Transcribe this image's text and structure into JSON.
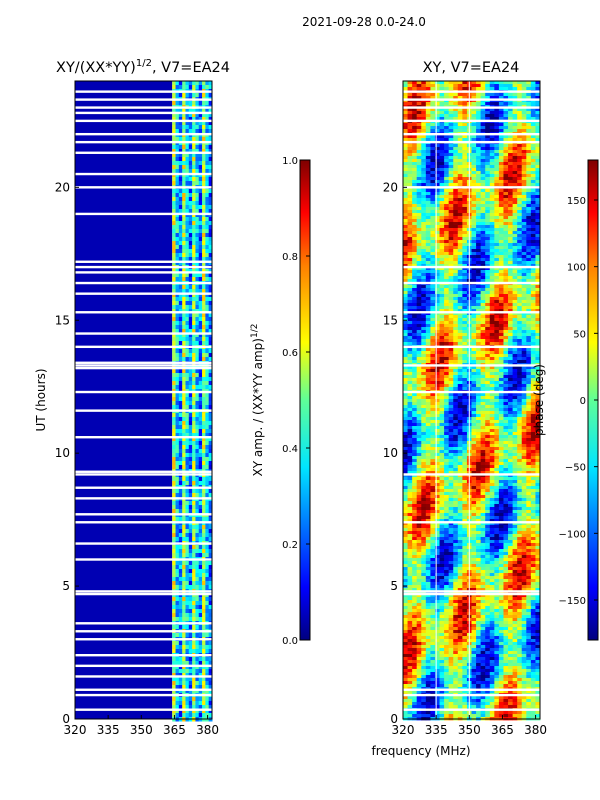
{
  "header": "2021-09-28 0.0-24.0",
  "common_xlabel": "frequency (MHz)",
  "chart_data": [
    {
      "type": "heatmap",
      "title": "XY/(XX*YY)^1/2, V7=EA24",
      "title_main": "XY/(XX*YY)",
      "title_sup": "1/2",
      "title_tail": ", V7=EA24",
      "ylabel": "UT (hours)",
      "xlim": [
        320,
        382
      ],
      "ylim": [
        0,
        24
      ],
      "xticks": [
        320,
        335,
        350,
        365,
        380
      ],
      "yticks": [
        0,
        5,
        10,
        15,
        20
      ],
      "colorbar": {
        "label_main": "XY amp. / (XX*YY amp)",
        "label_sup": "1/2",
        "range": [
          0.0,
          1.0
        ],
        "ticks": [
          0.0,
          0.2,
          0.4,
          0.6,
          0.8,
          1.0
        ],
        "tick_labels": [
          "0.0",
          "0.2",
          "0.4",
          "0.6",
          "0.8",
          "1.0"
        ]
      },
      "description_values": {
        "low_band_level": 0.05,
        "high_band_start_mhz": 364,
        "high_band_level": 0.45
      },
      "flag_hours": [
        0.35,
        0.9,
        1.1,
        1.6,
        2.0,
        2.4,
        3.0,
        3.3,
        3.6,
        4.7,
        4.8,
        6.0,
        6.6,
        7.4,
        7.7,
        8.3,
        8.7,
        9.2,
        9.3,
        10.6,
        11.6,
        12.3,
        13.2,
        13.3,
        13.4,
        14.0,
        14.5,
        15.3,
        16.0,
        16.4,
        16.8,
        17.0,
        17.2,
        19.0,
        20.0,
        20.5,
        21.3,
        21.7,
        22.0,
        22.5,
        22.8,
        23.0,
        23.3,
        23.6
      ]
    },
    {
      "type": "heatmap",
      "title": "XY, V7=EA24",
      "xlim": [
        320,
        382
      ],
      "ylim": [
        0,
        24
      ],
      "xticks": [
        320,
        335,
        350,
        365,
        380
      ],
      "yticks": [
        0,
        5,
        10,
        15,
        20
      ],
      "colorbar": {
        "label": "phase (deg)",
        "range": [
          -180,
          180
        ],
        "ticks": [
          -150,
          -100,
          -50,
          0,
          50,
          100,
          150
        ],
        "tick_labels": [
          "−150",
          "−100",
          "−50",
          "0",
          "50",
          "100",
          "150"
        ]
      },
      "flag_hours": [
        0.35,
        0.9,
        1.1,
        4.7,
        4.8,
        7.4,
        9.2,
        12.3,
        13.3,
        14.0,
        15.3,
        16.4,
        17.0,
        20.0,
        21.7,
        22.0,
        22.5,
        23.0,
        23.3,
        23.6
      ]
    }
  ]
}
